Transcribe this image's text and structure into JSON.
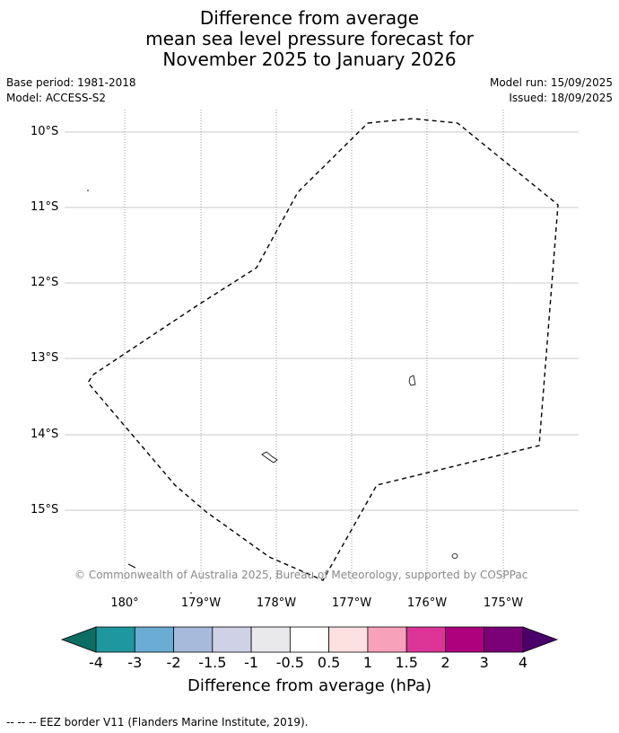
{
  "title": {
    "line1": "Difference from average",
    "line2": "mean sea level pressure forecast for",
    "line3": "November 2025 to January 2026"
  },
  "meta": {
    "base_period": "Base period: 1981-2018",
    "model": "Model: ACCESS-S2",
    "model_run": "Model run: 15/09/2025",
    "issued": "Issued: 18/09/2025"
  },
  "map": {
    "lat_labels": [
      "10°S",
      "11°S",
      "12°S",
      "13°S",
      "14°S",
      "15°S"
    ],
    "lon_labels": [
      "180°",
      "179°W",
      "178°W",
      "177°W",
      "176°W",
      "175°W"
    ],
    "copyright": "© Commonwealth of Australia 2025, Bureau of Meteorology, supported by COSPPac"
  },
  "colorbar": {
    "title": "Difference from average (hPa)",
    "labels": [
      "-4",
      "-3",
      "-2",
      "-1.5",
      "-1",
      "-0.5",
      "0.5",
      "1",
      "1.5",
      "2",
      "3",
      "4"
    ],
    "colors": [
      "#0a6e63",
      "#1f979e",
      "#6aacd3",
      "#a7badc",
      "#cfd2e6",
      "#e9e9ec",
      "#ffffff",
      "#fde0e0",
      "#f7a1bb",
      "#dd3497",
      "#ae017e",
      "#7a0177",
      "#49006a"
    ]
  },
  "footer": "--  --  -- EEZ border V11 (Flanders Marine Institute, 2019)."
}
